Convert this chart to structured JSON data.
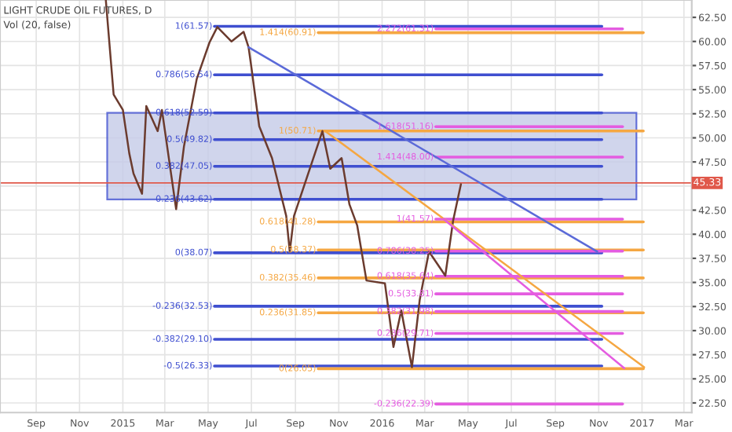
{
  "chart_data": {
    "type": "line",
    "title": "LIGHT CRUDE OIL FUTURES, D",
    "annotations": [
      "Vol (20, false)"
    ],
    "series": [
      {
        "color": "#6b3b2e",
        "x": [
          "2014-12-08",
          "2014-12-19",
          "2015-01-01",
          "2015-01-10",
          "2015-01-16",
          "2015-01-28",
          "2015-02-03",
          "2015-02-19",
          "2015-02-25",
          "2015-03-17",
          "2015-03-28",
          "2015-04-15",
          "2015-05-03",
          "2015-05-14",
          "2015-06-03",
          "2015-06-20",
          "2015-06-27",
          "2015-07-01",
          "2015-07-06",
          "2015-07-12",
          "2015-07-30",
          "2015-08-19",
          "2015-08-24",
          "2015-08-30",
          "2015-10-09",
          "2015-10-20",
          "2015-11-05",
          "2015-11-16",
          "2015-11-27",
          "2015-12-10",
          "2016-01-05",
          "2016-01-17",
          "2016-01-28",
          "2016-02-12",
          "2016-02-23",
          "2016-03-07",
          "2016-03-30",
          "2016-04-10",
          "2016-04-21"
        ],
        "values": [
          64.3,
          54.5,
          52.9,
          48.4,
          46.3,
          44.2,
          53.3,
          50.7,
          52.9,
          42.6,
          49.1,
          56.1,
          59.9,
          61.5,
          60.0,
          61.0,
          59.4,
          57.3,
          54.5,
          51.2,
          47.9,
          41.9,
          38.2,
          41.9,
          50.7,
          46.8,
          47.9,
          43.1,
          40.9,
          35.2,
          34.9,
          28.3,
          32.1,
          26.2,
          33.2,
          38.2,
          35.7,
          41.4,
          45.2
        ]
      },
      {
        "color": "#5b6ad8",
        "x": [
          "2015-06-27",
          "2016-10-30"
        ],
        "values": [
          59.4,
          38.2
        ]
      },
      {
        "color": "#f5a742",
        "x": [
          "2015-10-13",
          "2017-01-04"
        ],
        "values": [
          50.7,
          26.2
        ]
      },
      {
        "color": "#e45ce0",
        "x": [
          "2016-03-27",
          "2016-12-07"
        ],
        "values": [
          41.6,
          26.1
        ]
      }
    ],
    "ref_lines": [
      {
        "axis": "y",
        "value": 61.57,
        "label": "1(61.57)",
        "color": "#3f4fd0"
      },
      {
        "axis": "y",
        "value": 56.54,
        "label": "0.786(56.54)",
        "color": "#3f4fd0"
      },
      {
        "axis": "y",
        "value": 52.59,
        "label": "0.618(52.59)",
        "color": "#3f4fd0"
      },
      {
        "axis": "y",
        "value": 49.82,
        "label": "0.5(49.82)",
        "color": "#3f4fd0"
      },
      {
        "axis": "y",
        "value": 47.05,
        "label": "0.382(47.05)",
        "color": "#3f4fd0"
      },
      {
        "axis": "y",
        "value": 43.62,
        "label": "0.236(43.62)",
        "color": "#3f4fd0"
      },
      {
        "axis": "y",
        "value": 38.07,
        "label": "0(38.07)",
        "color": "#3f4fd0"
      },
      {
        "axis": "y",
        "value": 32.53,
        "label": "-0.236(32.53)",
        "color": "#3f4fd0"
      },
      {
        "axis": "y",
        "value": 29.1,
        "label": "-0.382(29.10)",
        "color": "#3f4fd0"
      },
      {
        "axis": "y",
        "value": 26.33,
        "label": "-0.5(26.33)",
        "color": "#3f4fd0"
      },
      {
        "axis": "y",
        "value": 60.91,
        "label": "1.414(60.91)",
        "color": "#f5a742"
      },
      {
        "axis": "y",
        "value": 50.71,
        "label": "1(50.71)",
        "color": "#f5a742"
      },
      {
        "axis": "y",
        "value": 41.28,
        "label": "0.618(41.28)",
        "color": "#f5a742"
      },
      {
        "axis": "y",
        "value": 38.37,
        "label": "0.5(38.37)",
        "color": "#f5a742"
      },
      {
        "axis": "y",
        "value": 35.46,
        "label": "0.382(35.46)",
        "color": "#f5a742"
      },
      {
        "axis": "y",
        "value": 31.85,
        "label": "0.236(31.85)",
        "color": "#f5a742"
      },
      {
        "axis": "y",
        "value": 26.05,
        "label": "0(26.05)",
        "color": "#f5a742"
      },
      {
        "axis": "y",
        "value": 61.31,
        "label": "2.272(61.31)",
        "color": "#e45ce0"
      },
      {
        "axis": "y",
        "value": 51.16,
        "label": "1.618(51.16)",
        "color": "#e45ce0"
      },
      {
        "axis": "y",
        "value": 48.0,
        "label": "1.414(48.00)",
        "color": "#e45ce0"
      },
      {
        "axis": "y",
        "value": 41.57,
        "label": "1(41.57)",
        "color": "#e45ce0"
      },
      {
        "axis": "y",
        "value": 38.25,
        "label": "0.786(38.25)",
        "color": "#e45ce0"
      },
      {
        "axis": "y",
        "value": 35.64,
        "label": "0.618(35.64)",
        "color": "#e45ce0"
      },
      {
        "axis": "y",
        "value": 33.81,
        "label": "0.5(33.81)",
        "color": "#e45ce0"
      },
      {
        "axis": "y",
        "value": 31.98,
        "label": "0.382(31.98)",
        "color": "#e45ce0"
      },
      {
        "axis": "y",
        "value": 29.71,
        "label": "0.236(29.71)",
        "color": "#e45ce0"
      },
      {
        "axis": "y",
        "value": 22.39,
        "label": "-0.236(22.39)",
        "color": "#e45ce0"
      },
      {
        "axis": "y",
        "value": 45.33,
        "label": "45.33",
        "color": "#e0584a"
      }
    ],
    "bands": [
      {
        "axis": "y",
        "from": 43.62,
        "to": 52.59,
        "color": "#c5cbe8"
      }
    ],
    "xlim": [
      "2014-07-12",
      "2017-03-12"
    ],
    "xticks": [
      {
        "value": "2014-09-01",
        "label": "Sep"
      },
      {
        "value": "2014-11-01",
        "label": "Nov"
      },
      {
        "value": "2015-01-01",
        "label": "2015"
      },
      {
        "value": "2015-03-01",
        "label": "Mar"
      },
      {
        "value": "2015-05-01",
        "label": "May"
      },
      {
        "value": "2015-07-01",
        "label": "Jul"
      },
      {
        "value": "2015-09-01",
        "label": "Sep"
      },
      {
        "value": "2015-11-01",
        "label": "Nov"
      },
      {
        "value": "2016-01-01",
        "label": "2016"
      },
      {
        "value": "2016-03-01",
        "label": "Mar"
      },
      {
        "value": "2016-05-01",
        "label": "May"
      },
      {
        "value": "2016-07-01",
        "label": "Jul"
      },
      {
        "value": "2016-09-01",
        "label": "Sep"
      },
      {
        "value": "2016-11-01",
        "label": "Nov"
      },
      {
        "value": "2017-01-01",
        "label": "2017"
      },
      {
        "value": "2017-03-01",
        "label": "Mar"
      }
    ],
    "ylim": [
      21.5,
      64.3
    ],
    "yticks": [
      {
        "value": 22.5,
        "label": "22.50"
      },
      {
        "value": 25,
        "label": "25.00"
      },
      {
        "value": 27.5,
        "label": "27.50"
      },
      {
        "value": 30,
        "label": "30.00"
      },
      {
        "value": 32.5,
        "label": "32.50"
      },
      {
        "value": 35,
        "label": "35.00"
      },
      {
        "value": 37.5,
        "label": "37.50"
      },
      {
        "value": 40,
        "label": "40.00"
      },
      {
        "value": 42.5,
        "label": "42.50"
      },
      {
        "value": 45,
        "label": null
      },
      {
        "value": 47.5,
        "label": "47.50"
      },
      {
        "value": 50,
        "label": "50.00"
      },
      {
        "value": 52.5,
        "label": "52.50"
      },
      {
        "value": 55,
        "label": "55.00"
      },
      {
        "value": 57.5,
        "label": "57.50"
      },
      {
        "value": 60,
        "label": "60.00"
      },
      {
        "value": 62.5,
        "label": "62.50"
      }
    ],
    "grid": true
  }
}
